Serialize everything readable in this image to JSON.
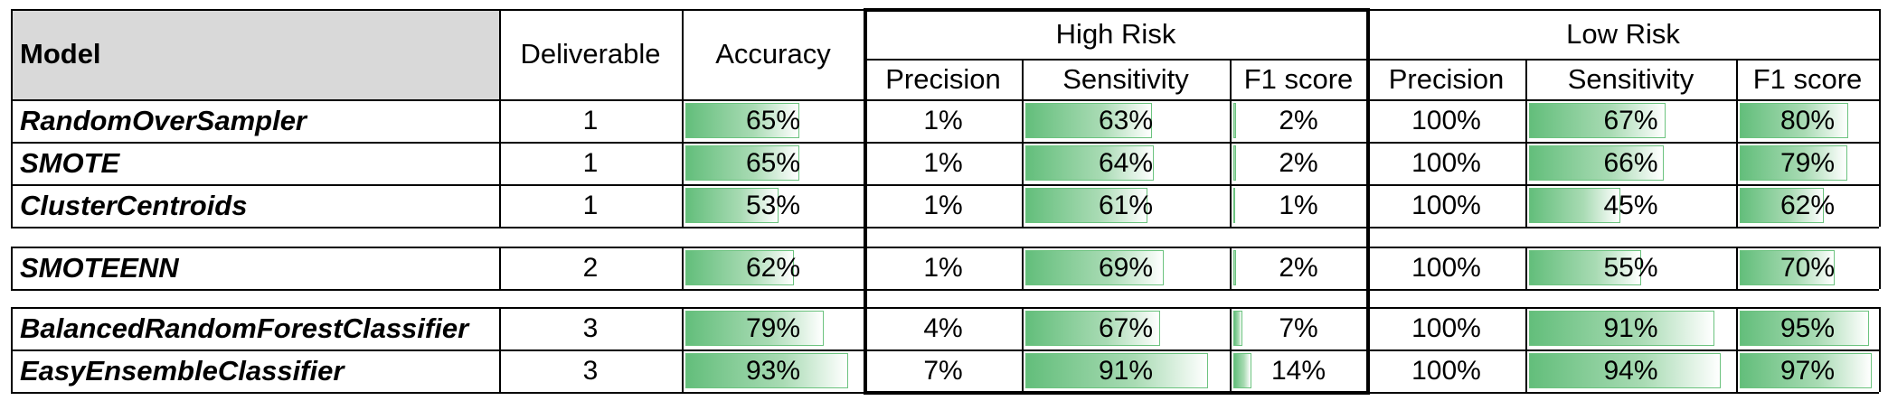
{
  "headers": {
    "model": "Model",
    "deliverable": "Deliverable",
    "accuracy": "Accuracy",
    "high_risk": "High Risk",
    "low_risk": "Low Risk",
    "precision": "Precision",
    "sensitivity": "Sensitivity",
    "f1": "F1 score"
  },
  "colors": {
    "bar_start": "#63be7b",
    "bar_end": "#ffffff",
    "header_fill": "#d9d9d9"
  },
  "rows": [
    {
      "model": "RandomOverSampler",
      "deliverable": "1",
      "accuracy": "65%",
      "hr_precision": "1%",
      "hr_sensitivity": "63%",
      "hr_f1": "2%",
      "lr_precision": "100%",
      "lr_sensitivity": "67%",
      "lr_f1": "80%"
    },
    {
      "model": "SMOTE",
      "deliverable": "1",
      "accuracy": "65%",
      "hr_precision": "1%",
      "hr_sensitivity": "64%",
      "hr_f1": "2%",
      "lr_precision": "100%",
      "lr_sensitivity": "66%",
      "lr_f1": "79%"
    },
    {
      "model": "ClusterCentroids",
      "deliverable": "1",
      "accuracy": "53%",
      "hr_precision": "1%",
      "hr_sensitivity": "61%",
      "hr_f1": "1%",
      "lr_precision": "100%",
      "lr_sensitivity": "45%",
      "lr_f1": "62%"
    },
    {
      "model": "SMOTEENN",
      "deliverable": "2",
      "accuracy": "62%",
      "hr_precision": "1%",
      "hr_sensitivity": "69%",
      "hr_f1": "2%",
      "lr_precision": "100%",
      "lr_sensitivity": "55%",
      "lr_f1": "70%"
    },
    {
      "model": "BalancedRandomForestClassifier",
      "deliverable": "3",
      "accuracy": "79%",
      "hr_precision": "4%",
      "hr_sensitivity": "67%",
      "hr_f1": "7%",
      "lr_precision": "100%",
      "lr_sensitivity": "91%",
      "lr_f1": "95%"
    },
    {
      "model": "EasyEnsembleClassifier",
      "deliverable": "3",
      "accuracy": "93%",
      "hr_precision": "7%",
      "hr_sensitivity": "91%",
      "hr_f1": "14%",
      "lr_precision": "100%",
      "lr_sensitivity": "94%",
      "lr_f1": "97%"
    }
  ]
}
